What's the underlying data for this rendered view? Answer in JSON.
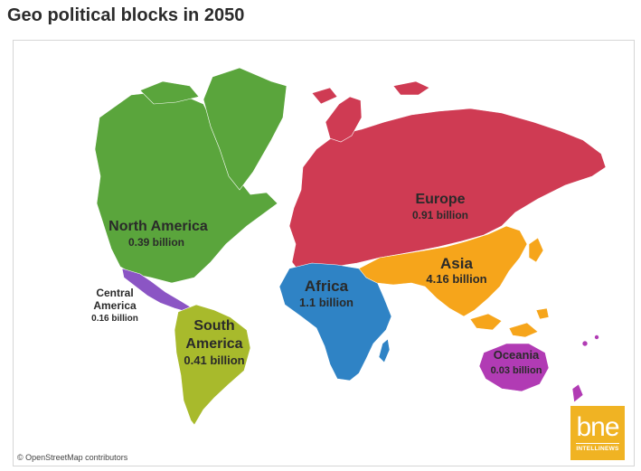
{
  "title": "Geo political blocks in 2050",
  "credit": "© OpenStreetMap contributors",
  "logo": {
    "main": "bne",
    "sub": "INTELLINEWS"
  },
  "colors": {
    "north_america": "#5aa53c",
    "central_america": "#8b55c4",
    "south_america": "#a8ba2c",
    "europe": "#cf3b53",
    "africa": "#2f83c5",
    "asia": "#f6a51b",
    "oceania": "#b13bb4",
    "logo": "#f0b323"
  },
  "blocks": [
    {
      "id": "north_america",
      "name": "North America",
      "population": "0.39 billion"
    },
    {
      "id": "central_america",
      "name_lines": [
        "Central",
        "America"
      ],
      "population": "0.16 billion"
    },
    {
      "id": "south_america",
      "name_lines": [
        "South",
        "America"
      ],
      "population": "0.41 billion"
    },
    {
      "id": "europe",
      "name": "Europe",
      "population": "0.91 billion"
    },
    {
      "id": "africa",
      "name": "Africa",
      "population": "1.1 billion"
    },
    {
      "id": "asia",
      "name": "Asia",
      "population": "4.16 billion"
    },
    {
      "id": "oceania",
      "name": "Oceania",
      "population": "0.03 billion"
    }
  ]
}
